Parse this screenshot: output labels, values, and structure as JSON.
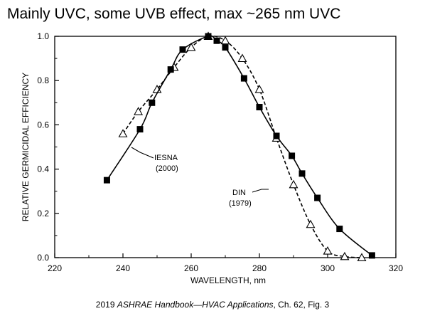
{
  "slide": {
    "title": "Mainly UVC, some UVB effect, max ~265 nm UVC"
  },
  "caption": {
    "before": "2019 ",
    "italic": "ASHRAE Handbook—HVAC Applications",
    "after": ", Ch. 62, Fig. 3"
  },
  "chart_data": {
    "type": "line",
    "title": "",
    "xlabel": "WAVELENGTH, nm",
    "ylabel": "RELATIVE GERMICIDAL EFFICIENCY",
    "xlim": [
      220,
      320
    ],
    "ylim": [
      0,
      1.0
    ],
    "xticks": [
      220,
      240,
      260,
      280,
      300,
      320
    ],
    "yticks": [
      0.0,
      0.2,
      0.4,
      0.6,
      0.8,
      1.0
    ],
    "grid": false,
    "series": [
      {
        "name": "IESNA (2000)",
        "label_lines": [
          "IESNA",
          "(2000)"
        ],
        "marker": "filled-square",
        "line_style": "solid",
        "x": [
          235.3,
          245,
          248.5,
          254,
          257.5,
          265,
          267.5,
          270,
          275.5,
          280,
          285,
          289.5,
          292.5,
          297,
          303.5,
          313
        ],
        "y": [
          0.35,
          0.58,
          0.7,
          0.85,
          0.94,
          1.0,
          0.98,
          0.95,
          0.81,
          0.68,
          0.55,
          0.46,
          0.38,
          0.27,
          0.13,
          0.01
        ]
      },
      {
        "name": "DIN (1979)",
        "label_lines": [
          "DIN",
          "(1979)"
        ],
        "marker": "open-triangle",
        "line_style": "dashed",
        "x": [
          240,
          244.5,
          250,
          255,
          260,
          265,
          270,
          275,
          280,
          285,
          290,
          295,
          300,
          305,
          310
        ],
        "y": [
          0.56,
          0.66,
          0.76,
          0.86,
          0.95,
          1.0,
          0.98,
          0.9,
          0.76,
          0.54,
          0.33,
          0.15,
          0.03,
          0.005,
          0.0
        ]
      }
    ]
  }
}
